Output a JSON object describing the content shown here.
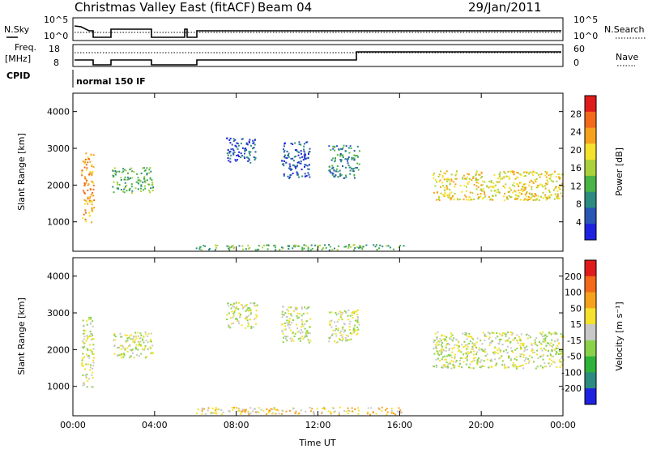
{
  "header": {
    "title": "Christmas Valley East (fitACF)",
    "beam": "Beam 04",
    "date": "29/Jan/2011"
  },
  "strip_labels": {
    "nsky": "N.Sky",
    "nsearch": "N.Search",
    "freq_line1": "Freq.",
    "freq_line2": "[MHz]",
    "nave": "Nave",
    "cpid": "CPID",
    "mode": "normal 150 IF"
  },
  "nsky_axis": {
    "ticks": [
      "10^5",
      "10^0"
    ]
  },
  "nsearch_axis": {
    "ticks": [
      "10^5",
      "10^0"
    ]
  },
  "freq_axis": {
    "ticks": [
      "18",
      "8"
    ]
  },
  "nave_axis": {
    "ticks": [
      "60",
      "0"
    ]
  },
  "chart_data": [
    {
      "type": "heatmap",
      "name": "power",
      "ylabel": "Slant Range [km]",
      "y_ticks": [
        1000,
        2000,
        3000,
        4000
      ],
      "ylim": [
        200,
        4500
      ],
      "xlim": [
        0,
        24
      ],
      "colorbar_label": "Power [dB]",
      "colorbar_ticks": [
        4,
        8,
        12,
        16,
        20,
        24,
        28
      ],
      "colors": [
        "#1E22E0",
        "#2A56B5",
        "#2D8C80",
        "#4AB446",
        "#ABD23A",
        "#F4E22C",
        "#F7A21C",
        "#F26A1A",
        "#E01B1B"
      ],
      "regions": [
        {
          "t": [
            0.4,
            1.0
          ],
          "r": [
            1000,
            2900
          ],
          "level": 6
        },
        {
          "t": [
            1.9,
            3.9
          ],
          "r": [
            1800,
            2500
          ],
          "level": 3
        },
        {
          "t": [
            7.5,
            9.0
          ],
          "r": [
            2600,
            3300
          ],
          "level": 1
        },
        {
          "t": [
            10.2,
            11.6
          ],
          "r": [
            2200,
            3200
          ],
          "level": 1
        },
        {
          "t": [
            12.5,
            14.0
          ],
          "r": [
            2200,
            3100
          ],
          "level": 2
        },
        {
          "t": [
            17.6,
            24.0
          ],
          "r": [
            1600,
            2400
          ],
          "level": 5
        },
        {
          "t": [
            6.0,
            16.2
          ],
          "r": [
            250,
            400
          ],
          "level": 3
        }
      ]
    },
    {
      "type": "heatmap",
      "name": "velocity",
      "ylabel": "Slant Range [km]",
      "y_ticks": [
        1000,
        2000,
        3000,
        4000
      ],
      "ylim": [
        200,
        4500
      ],
      "xlim": [
        0,
        24
      ],
      "x_ticks": [
        "00:00",
        "04:00",
        "08:00",
        "12:00",
        "16:00",
        "20:00",
        "00:00"
      ],
      "xlabel": "Time UT",
      "colorbar_label": "Velocity [m s⁻¹]",
      "colorbar_ticks": [
        200,
        100,
        50,
        15,
        -15,
        -50,
        -100,
        -200
      ],
      "colors": [
        "#1E22E0",
        "#2D8C80",
        "#2EB43A",
        "#8AD24A",
        "#C8C8C8",
        "#F4E22C",
        "#F7A21C",
        "#F26A1A",
        "#E01B1B"
      ],
      "regions": [
        {
          "t": [
            0.4,
            1.0
          ],
          "r": [
            1000,
            2900
          ],
          "level": 4
        },
        {
          "t": [
            1.9,
            3.9
          ],
          "r": [
            1800,
            2500
          ],
          "level": 4
        },
        {
          "t": [
            7.5,
            9.0
          ],
          "r": [
            2600,
            3300
          ],
          "level": 4
        },
        {
          "t": [
            10.2,
            11.6
          ],
          "r": [
            2200,
            3200
          ],
          "level": 4
        },
        {
          "t": [
            12.5,
            14.0
          ],
          "r": [
            2200,
            3100
          ],
          "level": 4
        },
        {
          "t": [
            17.6,
            24.0
          ],
          "r": [
            1500,
            2500
          ],
          "level": 4
        },
        {
          "t": [
            6.0,
            16.2
          ],
          "r": [
            250,
            450
          ],
          "level": 5
        }
      ]
    }
  ]
}
